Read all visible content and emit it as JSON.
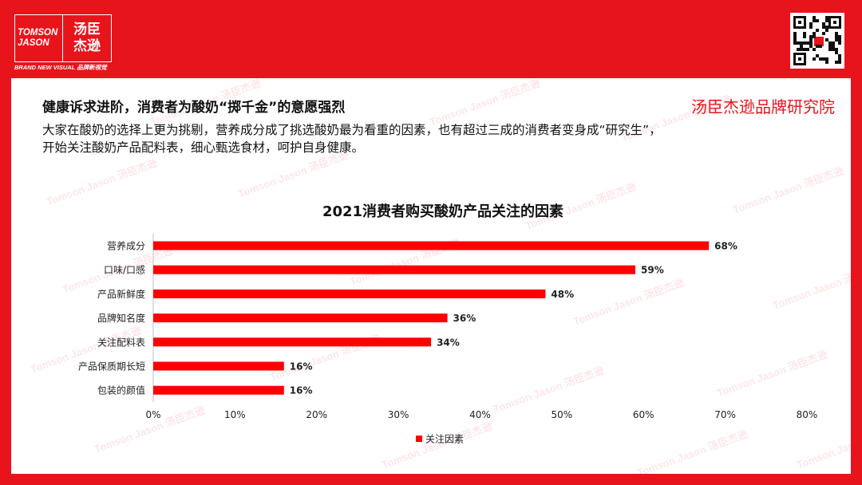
{
  "brand": {
    "logo_en_line1": "TOMSON",
    "logo_en_line2": "JASON",
    "logo_cn_line1": "汤臣",
    "logo_cn_line2": "杰逊",
    "tagline": "BRAND NEW VISUAL 品牌新视觉",
    "watermark": "Tomson Jason 汤臣杰逊"
  },
  "slide": {
    "headline": "健康诉求进阶，消费者为酸奶“掷千金”的意愿强烈",
    "institute": "汤臣杰逊品牌研究院",
    "body_line1": "大家在酸奶的选择上更为挑剔，营养成分成了挑选酸奶最为看重的因素，也有超过三成的消费者变身成“研究生”，",
    "body_line2": "开始关注酸奶产品配料表，细心甄选食材，呵护自身健康。"
  },
  "colors": {
    "brand_red": "#e8141b",
    "bar": "#ff0000"
  },
  "chart_data": {
    "type": "bar",
    "orientation": "horizontal",
    "title": "2021消费者购买酸奶产品关注的因素",
    "categories": [
      "营养成分",
      "口味/口感",
      "产品新鲜度",
      "品牌知名度",
      "关注配料表",
      "产品保质期长短",
      "包装的颜值"
    ],
    "series": [
      {
        "name": "关注因素",
        "values": [
          0.68,
          0.59,
          0.48,
          0.36,
          0.34,
          0.16,
          0.16
        ]
      }
    ],
    "data_labels": [
      "68%",
      "59%",
      "48%",
      "36%",
      "34%",
      "16%",
      "16%"
    ],
    "xlim": [
      0,
      0.8
    ],
    "xticks": [
      "0%",
      "10%",
      "20%",
      "30%",
      "40%",
      "50%",
      "60%",
      "70%",
      "80%"
    ],
    "grid": false,
    "legend": "bottom"
  }
}
